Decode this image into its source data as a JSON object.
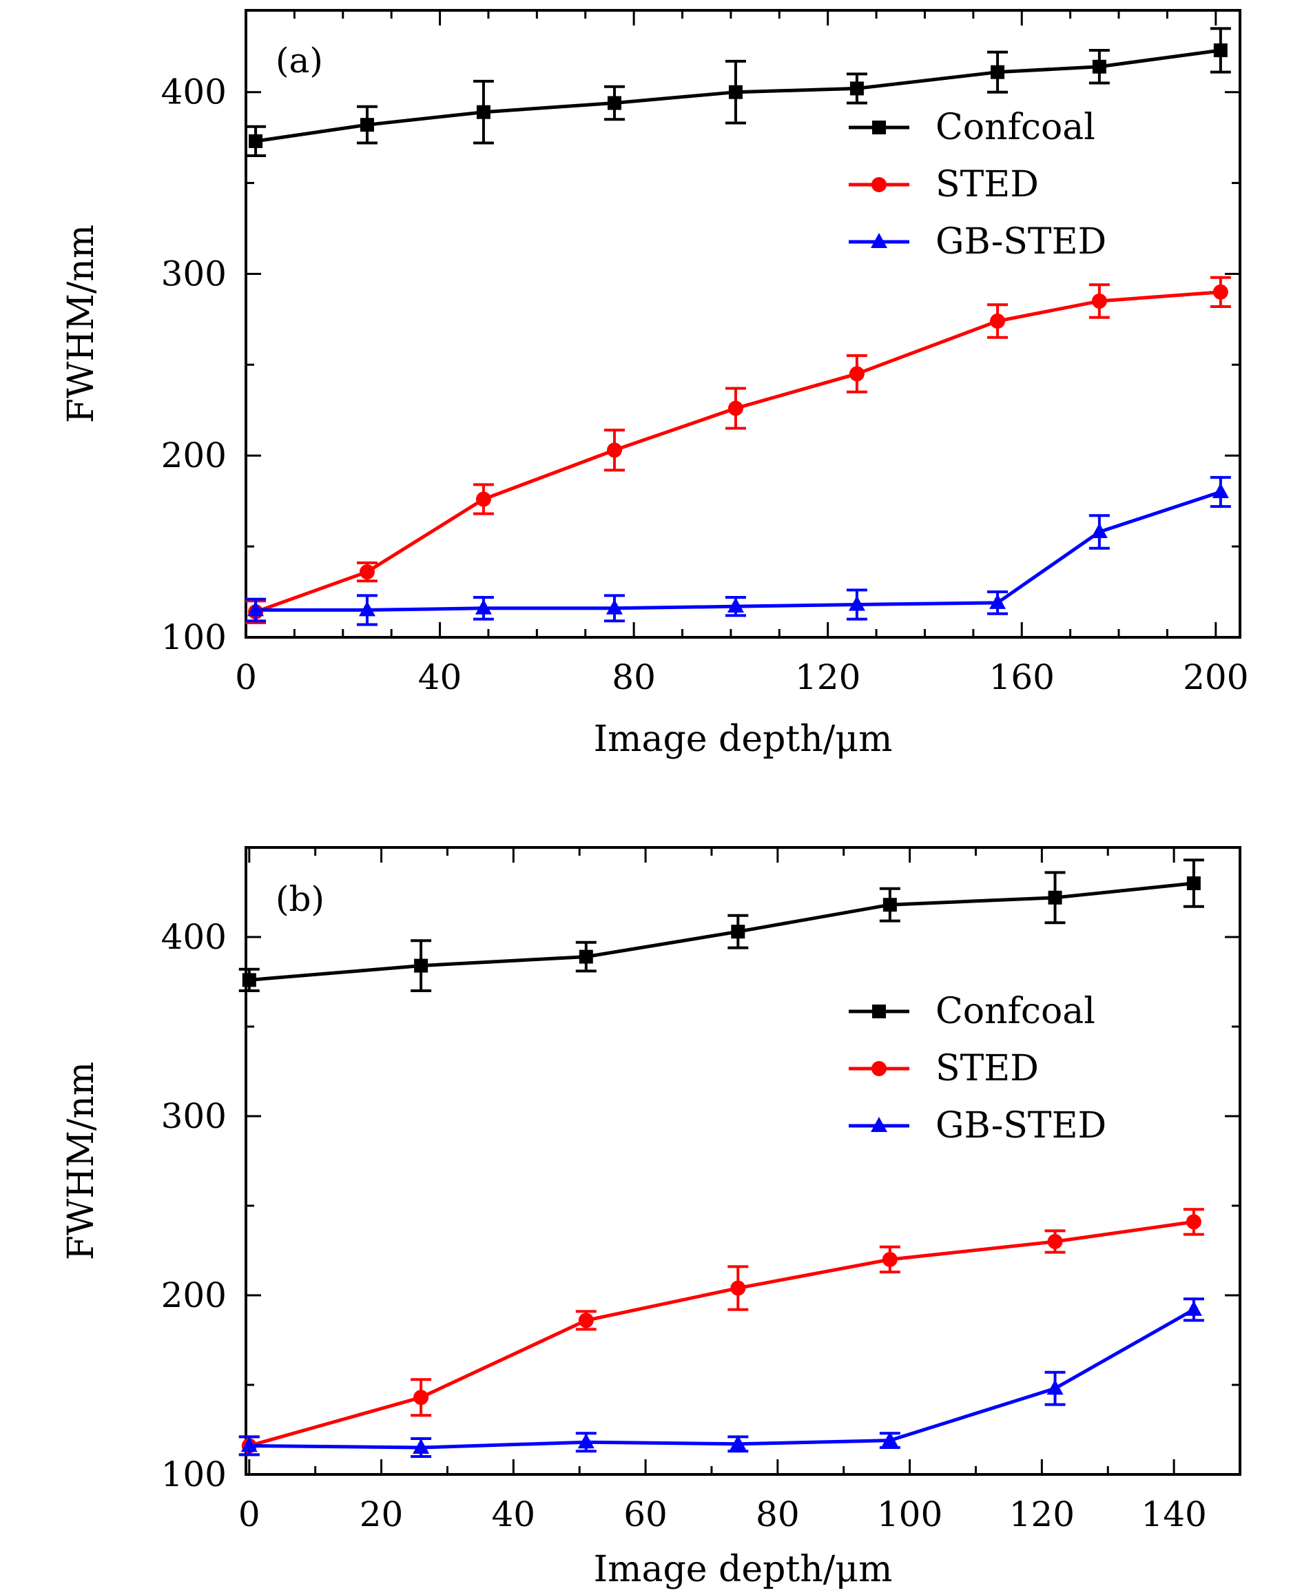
{
  "chart_data": [
    {
      "type": "line",
      "panel_label": "(a)",
      "xlabel": "Image depth/μm",
      "ylabel": "FWHM/nm",
      "xlim": [
        0,
        205
      ],
      "ylim": [
        100,
        445
      ],
      "x_ticks": [
        0,
        40,
        80,
        120,
        160,
        200
      ],
      "x_minor_step": 10,
      "y_ticks": [
        100,
        200,
        300,
        400
      ],
      "y_minor_step": 50,
      "legend_position": "right",
      "series": [
        {
          "name": "Confcoal",
          "color": "#000000",
          "marker": "square",
          "x": [
            2,
            25,
            49,
            76,
            101,
            126,
            155,
            176,
            201
          ],
          "y": [
            373,
            382,
            389,
            394,
            400,
            402,
            411,
            414,
            423
          ],
          "err": [
            8,
            10,
            17,
            9,
            17,
            8,
            11,
            9,
            12
          ]
        },
        {
          "name": "STED",
          "color": "#ff0000",
          "marker": "circle",
          "x": [
            2,
            25,
            49,
            76,
            101,
            126,
            155,
            176,
            201
          ],
          "y": [
            114,
            136,
            176,
            203,
            226,
            245,
            274,
            285,
            290
          ],
          "err": [
            6,
            5,
            8,
            11,
            11,
            10,
            9,
            9,
            8
          ]
        },
        {
          "name": "GB-STED",
          "color": "#0000ff",
          "marker": "triangle",
          "x": [
            2,
            25,
            49,
            76,
            101,
            126,
            155,
            176,
            201
          ],
          "y": [
            115,
            115,
            116,
            116,
            117,
            118,
            119,
            158,
            180
          ],
          "err": [
            6,
            8,
            6,
            7,
            5,
            8,
            6,
            9,
            8
          ]
        }
      ]
    },
    {
      "type": "line",
      "panel_label": "(b)",
      "xlabel": "Image depth/μm",
      "ylabel": "FWHM/nm",
      "xlim": [
        -0.5,
        150
      ],
      "ylim": [
        100,
        450
      ],
      "x_ticks": [
        0,
        20,
        40,
        60,
        80,
        100,
        120,
        140
      ],
      "x_minor_step": 10,
      "y_ticks": [
        100,
        200,
        300,
        400
      ],
      "y_minor_step": 50,
      "legend_position": "right",
      "series": [
        {
          "name": "Confcoal",
          "color": "#000000",
          "marker": "square",
          "x": [
            0,
            26,
            51,
            74,
            97,
            122,
            143
          ],
          "y": [
            376,
            384,
            389,
            403,
            418,
            422,
            430
          ],
          "err": [
            6,
            14,
            8,
            9,
            9,
            14,
            13
          ]
        },
        {
          "name": "STED",
          "color": "#ff0000",
          "marker": "circle",
          "x": [
            0,
            26,
            51,
            74,
            97,
            122,
            143
          ],
          "y": [
            116,
            143,
            186,
            204,
            220,
            230,
            241
          ],
          "err": [
            5,
            10,
            5,
            12,
            7,
            6,
            7
          ]
        },
        {
          "name": "GB-STED",
          "color": "#0000ff",
          "marker": "triangle",
          "x": [
            0,
            26,
            51,
            74,
            97,
            122,
            143
          ],
          "y": [
            116,
            115,
            118,
            117,
            119,
            148,
            192
          ],
          "err": [
            5,
            5,
            5,
            4,
            4,
            9,
            6
          ]
        }
      ]
    }
  ]
}
